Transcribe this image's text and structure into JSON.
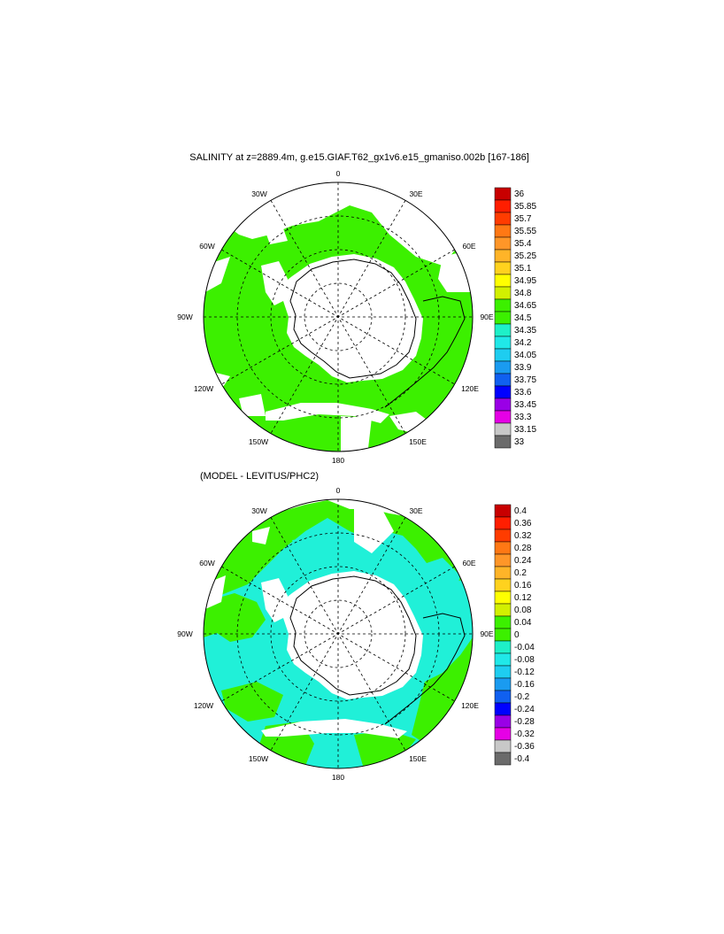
{
  "panels": [
    {
      "title": "SALINITY at z=2889.4m, g.e15.GIAF.T62_gx1v6.e15_gmaniso.002b [167-186]",
      "field": "salinity",
      "lon_labels": [
        "0",
        "30E",
        "60E",
        "90E",
        "120E",
        "150E",
        "180",
        "150W",
        "120W",
        "90W",
        "60W",
        "30W"
      ],
      "colorbar": {
        "colors": [
          "#6b6b6b",
          "#c8c8c8",
          "#e600e6",
          "#9a00e6",
          "#0000ff",
          "#1060f0",
          "#1a9bf0",
          "#1ecdf0",
          "#20e8e8",
          "#1ef0c8",
          "#3cf000",
          "#3cf000",
          "#d2f000",
          "#ffff00",
          "#ffd21e",
          "#ffb428",
          "#ff9628",
          "#ff7814",
          "#ff3c00",
          "#ff1e00",
          "#c80000"
        ],
        "labels": [
          "36",
          "35.85",
          "35.7",
          "35.55",
          "35.4",
          "35.25",
          "35.1",
          "34.95",
          "34.8",
          "34.65",
          "34.5",
          "34.35",
          "34.2",
          "34.05",
          "33.9",
          "33.75",
          "33.6",
          "33.45",
          "33.3",
          "33.15",
          "33"
        ]
      }
    },
    {
      "title": "(MODEL - LEVITUS/PHC2)",
      "field": "salinity difference",
      "lon_labels": [
        "0",
        "30E",
        "60E",
        "90E",
        "120E",
        "150E",
        "180",
        "150W",
        "120W",
        "90W",
        "60W",
        "30W"
      ],
      "colorbar": {
        "colors": [
          "#6b6b6b",
          "#c8c8c8",
          "#e600e6",
          "#9a00e6",
          "#0000ff",
          "#1060f0",
          "#1a9bf0",
          "#1ecdf0",
          "#20e8e8",
          "#1ef0c8",
          "#3cf000",
          "#3cf000",
          "#d2f000",
          "#ffff00",
          "#ffd21e",
          "#ffb428",
          "#ff9628",
          "#ff7814",
          "#ff3c00",
          "#ff1e00",
          "#c80000"
        ],
        "labels": [
          "0.4",
          "0.36",
          "0.32",
          "0.28",
          "0.24",
          "0.2",
          "0.16",
          "0.12",
          "0.08",
          "0.04",
          "0",
          "-0.04",
          "-0.08",
          "-0.12",
          "-0.16",
          "-0.2",
          "-0.24",
          "-0.28",
          "-0.32",
          "-0.36",
          "-0.4"
        ]
      }
    }
  ],
  "colors": {
    "green": "#3cf000",
    "cyan": "#20f0d8",
    "land": "#ffffff",
    "outline": "#000000"
  }
}
